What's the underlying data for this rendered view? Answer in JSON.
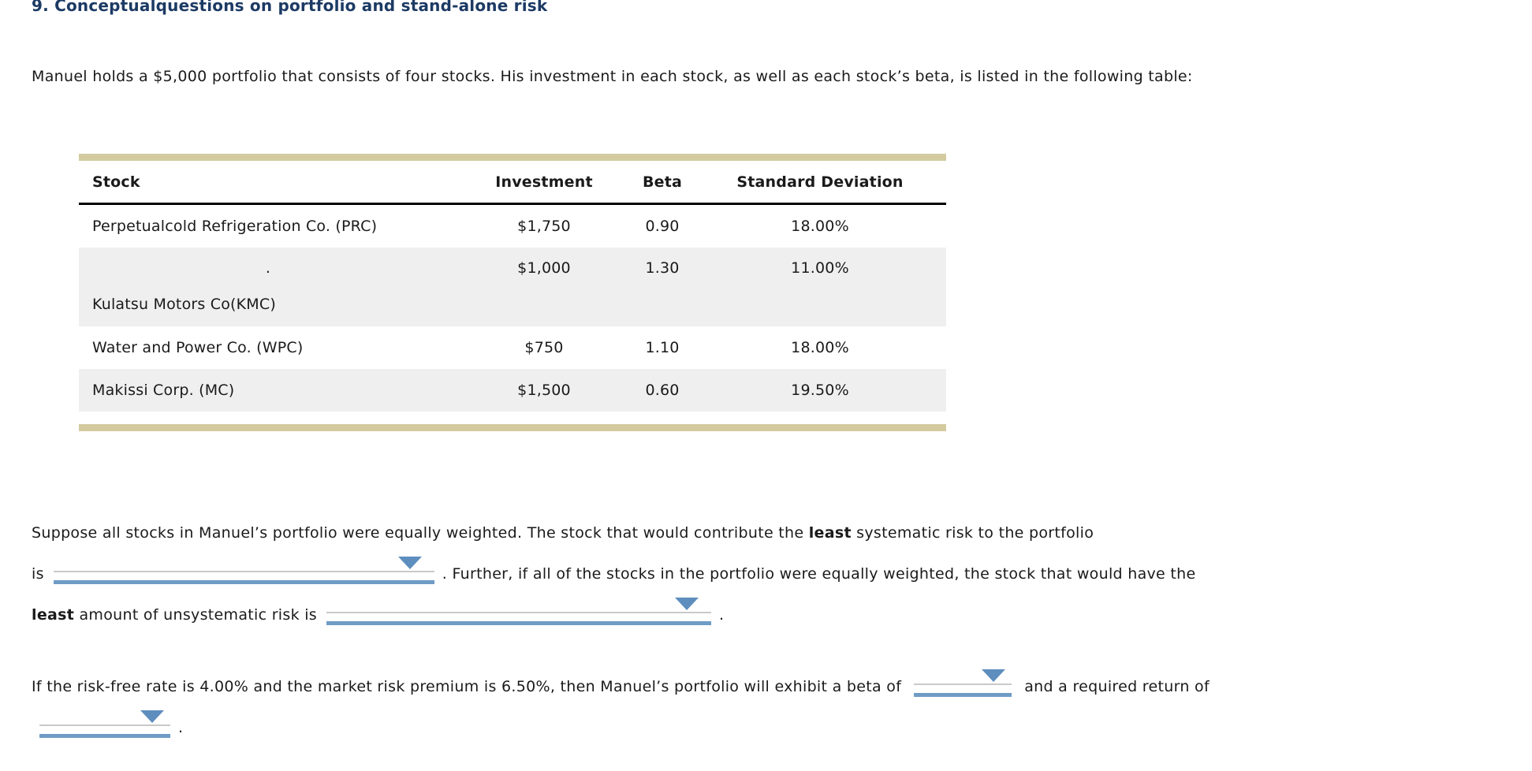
{
  "title": "9. Conceptualquestions on portfolio and stand-alone risk",
  "intro": "Manuel holds a $5,000 portfolio that consists of four stocks. His investment in each stock, as well as each stock’s beta, is listed in the following table:",
  "table": {
    "headers": [
      "Stock",
      "Investment",
      "Beta",
      "Standard Deviation"
    ],
    "rows": [
      {
        "stock": "Perpetualcold Refrigeration Co. (PRC)",
        "investment": "$1,750",
        "beta": "0.90",
        "std_dev": "18.00%"
      },
      {
        "stock_dot": ".",
        "stock": "Kulatsu Motors Co(KMC)",
        "investment": "$1,000",
        "beta": "1.30",
        "std_dev": "11.00%"
      },
      {
        "stock": "Water and Power Co. (WPC)",
        "investment": "$750",
        "beta": "1.10",
        "std_dev": "18.00%"
      },
      {
        "stock": "Makissi Corp. (MC)",
        "investment": "$1,500",
        "beta": "0.60",
        "std_dev": "19.50%"
      }
    ]
  },
  "question1": {
    "line1_part1": "Suppose all stocks in Manuel’s portfolio were equally weighted. The stock that would contribute the ",
    "line1_bold": "least",
    "line1_part2": " systematic risk to the portfolio",
    "line2_prefix": "is",
    "line2_suffix": ". Further, if all of the stocks in the portfolio were equally weighted, the stock that would have the",
    "line3_bold": "least",
    "line3_text": " amount of unsystematic risk is",
    "line3_suffix": "."
  },
  "question2": {
    "line1_part1": "If the risk-free rate is 4.00% and the market risk premium is 6.50%, then Manuel’s portfolio will exhibit a beta of",
    "line1_part2": "and a required return of",
    "line2_suffix": "."
  },
  "dropdowns": {
    "value": "",
    "arrow_icon": "triangle-down"
  },
  "colors": {
    "title_navy": "#1c3a64",
    "table_border_tan": "#d3ca9f",
    "row_alt_gray": "#efefef",
    "dropdown_blue": "#6f9cc5",
    "arrow_blue": "#5d8ebe"
  }
}
